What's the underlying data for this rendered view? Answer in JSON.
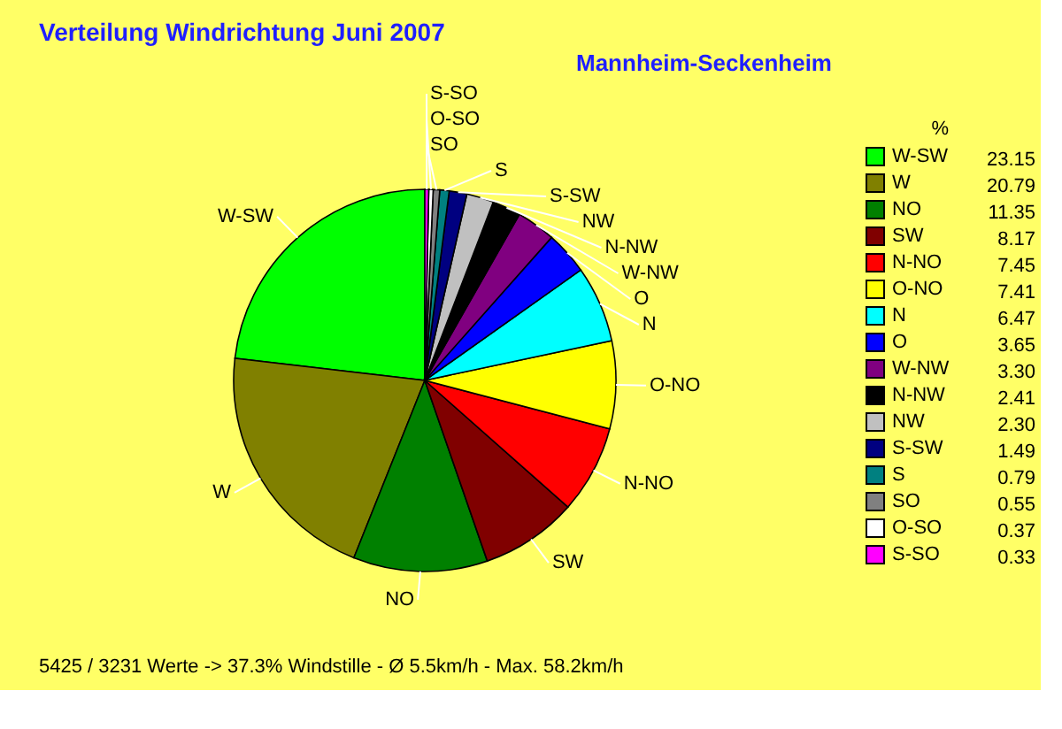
{
  "chart_data": {
    "type": "pie",
    "title": "Verteilung Windrichtung   Juni 2007",
    "subtitle": "Mannheim-Seckenheim",
    "legend_title": "%",
    "categories": [
      "W-SW",
      "W",
      "NO",
      "SW",
      "N-NO",
      "O-NO",
      "N",
      "O",
      "W-NW",
      "N-NW",
      "NW",
      "S-SW",
      "S",
      "SO",
      "O-SO",
      "S-SO"
    ],
    "values": [
      23.15,
      20.79,
      11.35,
      8.17,
      7.45,
      7.41,
      6.47,
      3.65,
      3.3,
      2.41,
      2.3,
      1.49,
      0.79,
      0.55,
      0.37,
      0.33
    ],
    "value_labels": [
      "23.15",
      "20.79",
      "11.35",
      "8.17",
      "7.45",
      "7.41",
      "6.47",
      "3.65",
      "3.30",
      "2.41",
      "2.30",
      "1.49",
      "0.79",
      "0.55",
      "0.37",
      "0.33"
    ],
    "colors": [
      "#00ff00",
      "#808000",
      "#008000",
      "#800000",
      "#ff0000",
      "#ffff00",
      "#00ffff",
      "#0000ff",
      "#800080",
      "#000000",
      "#c0c0c0",
      "#000080",
      "#008080",
      "#808080",
      "#ffffff",
      "#ff00ff"
    ],
    "legend": "right",
    "annotations": [
      "5425 / 3231 Werte  -> 37.3% Windstille   -   Ø 5.5km/h  -  Max. 58.2km/h"
    ]
  }
}
